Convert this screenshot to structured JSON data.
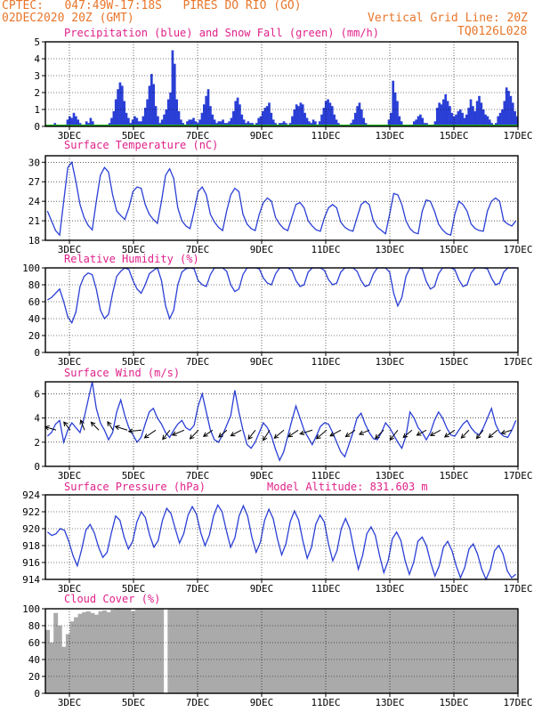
{
  "header": {
    "line1_left": "CPTEC:   047:49W-17:18S   PIRES DO RIO (GO)",
    "line2_left": "02DEC2020 20Z (GMT)",
    "line2_right": "Vertical Grid Line: 20Z",
    "line3_right": "TQ0126L028"
  },
  "colors": {
    "header_text": "#e8762b",
    "panel_title": "#e0218a",
    "line": "#2a3fd6",
    "bar": "#2a3fd6",
    "snow": "#22aa22",
    "cloud": "#aaaaaa"
  },
  "x_ticks": [
    "3DEC",
    "5DEC",
    "7DEC",
    "9DEC",
    "11DEC",
    "13DEC",
    "15DEC",
    "17DEC"
  ],
  "chart_data": [
    {
      "type": "bar",
      "title": "Precipitation (blue) and Snow Fall (green) (mm/h)",
      "ylim": [
        0,
        5
      ],
      "yticks": [
        "0",
        "1",
        "2",
        "3",
        "4",
        "5"
      ],
      "series": [
        {
          "name": "Precipitation",
          "color": "#2a3fd6",
          "values": [
            0,
            0,
            0,
            0,
            0.2,
            0,
            0,
            0,
            0,
            0,
            0.4,
            0.6,
            0.5,
            0.8,
            0.6,
            0.4,
            0.2,
            0,
            0,
            0.3,
            0.2,
            0.5,
            0.3,
            0.1,
            0,
            0,
            0,
            0,
            0,
            0.1,
            0.2,
            0.5,
            0.9,
            1.6,
            2.2,
            2.6,
            2.4,
            1.5,
            0.8,
            0.5,
            0.2,
            0.4,
            0.6,
            0.5,
            0.3,
            0.3,
            0.6,
            1.1,
            1.6,
            2.4,
            3.1,
            2.5,
            1.2,
            0.6,
            0.2,
            0.4,
            0.7,
            1.0,
            1.6,
            2.0,
            4.5,
            3.7,
            1.6,
            0.9,
            0.4,
            0.2,
            0.1,
            0.3,
            0.4,
            0.4,
            0.5,
            0.3,
            0.2,
            0.4,
            0.8,
            1.3,
            1.8,
            2.2,
            1.2,
            0.7,
            0.4,
            0.2,
            0.3,
            0.3,
            0.4,
            0.2,
            0.2,
            0.3,
            0.5,
            0.9,
            1.5,
            1.7,
            1.3,
            0.7,
            0.4,
            0.2,
            0.3,
            0.2,
            0.2,
            0.1,
            0.2,
            0.5,
            0.6,
            0.9,
            1.1,
            1.2,
            1.4,
            0.8,
            0.4,
            0.2,
            0.1,
            0.2,
            0.2,
            0.3,
            0.2,
            0.1,
            0.2,
            0.6,
            1.0,
            1.3,
            1.2,
            1.4,
            1.3,
            0.8,
            0.5,
            0.3,
            0.2,
            0.4,
            0.3,
            0.1,
            0.3,
            0.7,
            1.1,
            1.5,
            1.6,
            1.4,
            1.2,
            0.7,
            0.4,
            0.2,
            0.1,
            0.1,
            0,
            0,
            0,
            0.2,
            0.4,
            0.8,
            1.2,
            1.4,
            1.0,
            0.5,
            0.2,
            0.1,
            0,
            0,
            0,
            0,
            0,
            0,
            0,
            0,
            0.1,
            0.4,
            0.8,
            2.7,
            2.0,
            1.5,
            0.6,
            0.3,
            0.1,
            0,
            0,
            0,
            0,
            0.3,
            0.4,
            0.6,
            0.7,
            0.5,
            0.2,
            0.2,
            0.1,
            0,
            0.1,
            0.3,
            1.1,
            1.4,
            1.3,
            1.6,
            1.9,
            1.5,
            1.2,
            0.8,
            0.6,
            0.7,
            0.9,
            1.0,
            0.8,
            0.5,
            0.7,
            1.1,
            1.6,
            1.2,
            0.9,
            1.5,
            1.8,
            1.4,
            1.0,
            0.7,
            0.6,
            0.4,
            0.2,
            0.1,
            0.2,
            0.6,
            0.8,
            1.0,
            1.5,
            2.3,
            2.1,
            1.8,
            1.4,
            0.9,
            0.6
          ]
        },
        {
          "name": "Snow Fall",
          "color": "#22aa22",
          "values": [
            0,
            0,
            0,
            0,
            0,
            0,
            0,
            0
          ]
        }
      ]
    },
    {
      "type": "line",
      "title": "Surface Temperature (nC)",
      "ylim": [
        18,
        31
      ],
      "yticks": [
        "18",
        "21",
        "24",
        "27",
        "30"
      ],
      "series": [
        {
          "name": "",
          "values": [
            22.5,
            21.0,
            19.5,
            18.8,
            24.0,
            29.2,
            30.0,
            27.0,
            23.5,
            21.5,
            20.3,
            19.6,
            24.0,
            28.0,
            29.2,
            28.5,
            25.0,
            22.5,
            21.8,
            21.2,
            23.0,
            25.5,
            26.2,
            26.0,
            23.5,
            22.0,
            21.2,
            20.6,
            24.0,
            28.0,
            29.0,
            27.5,
            23.0,
            21.0,
            20.2,
            19.8,
            22.5,
            25.5,
            26.2,
            25.0,
            22.0,
            20.8,
            20.0,
            19.5,
            22.5,
            25.0,
            26.0,
            25.5,
            22.0,
            20.5,
            19.8,
            19.5,
            22.0,
            23.8,
            24.5,
            24.0,
            21.5,
            20.5,
            19.8,
            19.5,
            21.5,
            23.5,
            23.8,
            23.0,
            21.0,
            20.2,
            19.6,
            19.4,
            21.5,
            23.0,
            23.5,
            23.0,
            20.8,
            20.0,
            19.6,
            19.4,
            21.5,
            23.5,
            24.0,
            23.5,
            21.0,
            20.0,
            19.5,
            19.0,
            22.0,
            25.2,
            25.0,
            23.5,
            21.0,
            19.8,
            19.2,
            19.0,
            22.5,
            24.2,
            24.0,
            22.5,
            20.5,
            19.6,
            19.0,
            18.8,
            22.0,
            24.0,
            23.5,
            22.5,
            20.5,
            19.8,
            19.5,
            19.4,
            22.5,
            24.0,
            24.5,
            24.0,
            21.0,
            20.5,
            20.2,
            21.0
          ]
        }
      ]
    },
    {
      "type": "line",
      "title": "Relative Humidity (%)",
      "ylim": [
        0,
        100
      ],
      "yticks": [
        "0",
        "20",
        "40",
        "60",
        "80",
        "100"
      ],
      "series": [
        {
          "name": "",
          "values": [
            62,
            65,
            70,
            75,
            60,
            42,
            35,
            48,
            78,
            90,
            94,
            92,
            75,
            50,
            40,
            45,
            70,
            90,
            96,
            100,
            98,
            85,
            75,
            70,
            80,
            93,
            97,
            100,
            85,
            55,
            40,
            50,
            80,
            95,
            99,
            100,
            99,
            85,
            80,
            78,
            92,
            100,
            100,
            100,
            96,
            80,
            72,
            75,
            92,
            100,
            100,
            100,
            99,
            88,
            82,
            80,
            93,
            100,
            100,
            100,
            97,
            85,
            78,
            80,
            95,
            100,
            100,
            100,
            97,
            86,
            80,
            82,
            95,
            100,
            100,
            100,
            96,
            85,
            78,
            80,
            93,
            100,
            100,
            100,
            95,
            70,
            55,
            65,
            90,
            100,
            100,
            100,
            99,
            84,
            75,
            78,
            93,
            100,
            100,
            100,
            98,
            86,
            78,
            80,
            94,
            100,
            100,
            100,
            99,
            88,
            80,
            82,
            95,
            100,
            100,
            100
          ]
        }
      ]
    },
    {
      "type": "line",
      "title": "Surface Wind (m/s)",
      "ylim": [
        0,
        7
      ],
      "yticks": [
        "0",
        "2",
        "4",
        "6"
      ],
      "series": [
        {
          "name": "",
          "values": [
            2.5,
            2.8,
            3.5,
            3.8,
            2.0,
            3.0,
            3.6,
            3.2,
            2.8,
            4.0,
            5.5,
            7.0,
            4.8,
            3.6,
            3.0,
            2.2,
            2.8,
            4.5,
            5.5,
            4.2,
            3.2,
            2.6,
            2.0,
            2.4,
            3.5,
            4.5,
            4.8,
            4.0,
            3.5,
            2.8,
            2.4,
            3.0,
            3.5,
            3.8,
            3.2,
            3.0,
            3.4,
            5.0,
            6.0,
            4.5,
            3.0,
            2.2,
            2.0,
            2.6,
            3.4,
            4.2,
            6.3,
            4.5,
            3.0,
            1.8,
            1.5,
            2.0,
            2.8,
            3.6,
            3.2,
            2.5,
            1.4,
            0.5,
            1.2,
            2.5,
            3.8,
            5.0,
            4.0,
            3.0,
            2.4,
            1.8,
            2.5,
            3.3,
            3.6,
            3.5,
            2.8,
            2.0,
            1.2,
            0.8,
            1.8,
            2.8,
            4.0,
            4.4,
            3.5,
            2.8,
            2.3,
            2.2,
            2.8,
            3.6,
            3.2,
            2.6,
            2.0,
            1.5,
            2.5,
            4.5,
            4.0,
            3.2,
            2.8,
            2.2,
            2.8,
            3.8,
            4.5,
            4.0,
            3.2,
            2.6,
            2.5,
            3.0,
            3.5,
            3.8,
            3.2,
            2.8,
            2.6,
            3.2,
            4.0,
            4.8,
            3.5,
            2.8,
            2.5,
            2.4,
            3.0,
            3.8
          ]
        }
      ]
    },
    {
      "type": "line",
      "title": "Surface Pressure (hPa)",
      "annotation": "Model Altitude: 831.603 m",
      "ylim": [
        914,
        924
      ],
      "yticks": [
        "914",
        "916",
        "918",
        "920",
        "922",
        "924"
      ],
      "series": [
        {
          "name": "",
          "values": [
            919.6,
            919.2,
            919.4,
            920.0,
            919.8,
            918.5,
            916.8,
            915.6,
            917.5,
            919.8,
            920.5,
            919.5,
            917.8,
            916.6,
            917.2,
            919.5,
            921.5,
            921.0,
            919.0,
            917.6,
            918.5,
            920.8,
            922.0,
            921.3,
            919.2,
            917.8,
            918.6,
            921.0,
            922.4,
            921.8,
            920.0,
            918.3,
            919.4,
            921.6,
            922.6,
            921.7,
            919.5,
            918.0,
            919.2,
            921.5,
            922.8,
            922.0,
            919.8,
            917.8,
            918.9,
            921.5,
            922.7,
            921.5,
            919.0,
            917.2,
            918.4,
            921.0,
            922.3,
            921.2,
            918.8,
            916.9,
            918.2,
            920.8,
            922.1,
            921.0,
            918.5,
            916.5,
            917.8,
            920.5,
            921.6,
            920.8,
            918.2,
            916.2,
            917.4,
            920.0,
            921.2,
            920.0,
            917.5,
            915.2,
            916.8,
            919.4,
            920.2,
            919.2,
            916.8,
            914.8,
            916.2,
            918.8,
            919.6,
            918.6,
            916.2,
            914.6,
            916.0,
            918.5,
            919.0,
            918.0,
            916.0,
            914.4,
            915.6,
            917.8,
            918.5,
            917.4,
            915.6,
            914.2,
            915.4,
            917.6,
            918.2,
            917.0,
            915.2,
            914.0,
            915.2,
            917.4,
            918.0,
            917.0,
            915.0,
            914.2,
            914.6
          ]
        }
      ]
    },
    {
      "type": "area",
      "title": "Cloud Cover (%)",
      "ylim": [
        0,
        100
      ],
      "yticks": [
        "0",
        "20",
        "40",
        "60",
        "80",
        "100"
      ],
      "series": [
        {
          "name": "",
          "values": [
            75,
            60,
            95,
            80,
            55,
            70,
            85,
            90,
            94,
            96,
            97,
            95,
            93,
            97,
            98,
            96,
            99,
            100,
            100,
            100,
            100,
            97,
            100,
            100,
            100,
            100,
            100,
            100,
            100,
            0,
            100,
            100,
            100,
            100,
            100,
            100,
            100,
            100,
            100,
            100,
            100,
            100,
            100,
            100,
            100,
            100,
            100,
            100,
            100,
            100,
            100,
            100,
            100,
            100,
            100,
            100,
            100,
            100,
            100,
            100,
            100,
            100,
            100,
            100,
            100,
            100,
            100,
            100,
            100,
            100,
            100,
            100,
            100,
            100,
            100,
            100,
            100,
            100,
            100,
            100,
            100,
            100,
            100,
            100,
            100,
            100,
            100,
            100,
            100,
            100,
            100,
            100,
            100,
            100,
            100,
            100,
            100,
            100,
            100,
            100,
            100,
            100,
            100,
            100,
            100,
            100,
            100,
            100,
            100,
            100,
            100,
            100,
            100,
            100,
            100,
            100
          ]
        }
      ]
    }
  ]
}
